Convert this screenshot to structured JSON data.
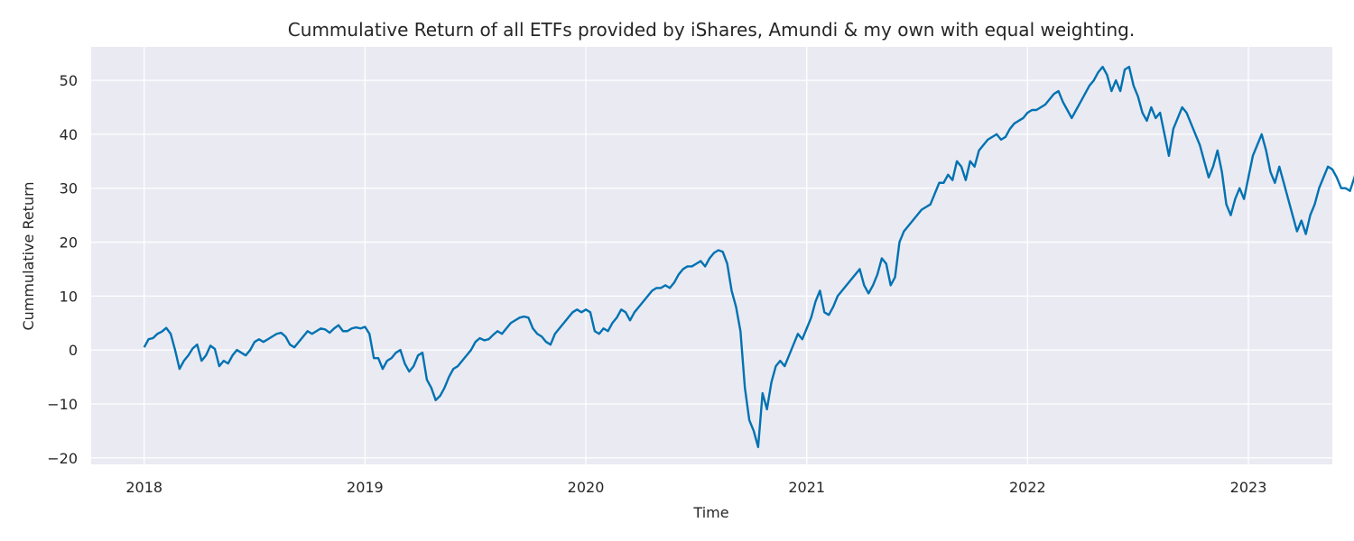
{
  "chart_data": {
    "type": "line",
    "title": "Cummulative Return of all ETFs provided by iShares, Amundi & my own with equal weighting.",
    "xlabel": "Time",
    "ylabel": "Cummulative Return",
    "xlim": [
      2017.76,
      2023.38
    ],
    "ylim": [
      -21.2,
      56.2
    ],
    "grid": true,
    "x_ticks": [
      {
        "value": 2018,
        "label": "2018"
      },
      {
        "value": 2019,
        "label": "2019"
      },
      {
        "value": 2020,
        "label": "2020"
      },
      {
        "value": 2021,
        "label": "2021"
      },
      {
        "value": 2022,
        "label": "2022"
      },
      {
        "value": 2023,
        "label": "2023"
      }
    ],
    "y_ticks": [
      {
        "value": 50,
        "label": "50"
      },
      {
        "value": 40,
        "label": "40"
      },
      {
        "value": 30,
        "label": "30"
      },
      {
        "value": 20,
        "label": "20"
      },
      {
        "value": 10,
        "label": "10"
      },
      {
        "value": 0,
        "label": "0"
      },
      {
        "value": -10,
        "label": "−10"
      },
      {
        "value": -20,
        "label": "−20"
      }
    ],
    "series": [
      {
        "name": "Cummulative Return",
        "color": "#0072b2",
        "points": [
          [
            2018.0,
            0.5
          ],
          [
            2018.02,
            2.0
          ],
          [
            2018.04,
            2.2
          ],
          [
            2018.06,
            3.0
          ],
          [
            2018.08,
            3.4
          ],
          [
            2018.1,
            4.1
          ],
          [
            2018.12,
            3.0
          ],
          [
            2018.14,
            0.0
          ],
          [
            2018.16,
            -3.5
          ],
          [
            2018.18,
            -2.0
          ],
          [
            2018.2,
            -1.0
          ],
          [
            2018.22,
            0.3
          ],
          [
            2018.24,
            1.0
          ],
          [
            2018.26,
            -2.0
          ],
          [
            2018.28,
            -1.0
          ],
          [
            2018.3,
            0.8
          ],
          [
            2018.32,
            0.2
          ],
          [
            2018.34,
            -3.0
          ],
          [
            2018.36,
            -2.0
          ],
          [
            2018.38,
            -2.5
          ],
          [
            2018.4,
            -1.0
          ],
          [
            2018.42,
            0.0
          ],
          [
            2018.44,
            -0.5
          ],
          [
            2018.46,
            -1.0
          ],
          [
            2018.48,
            0.0
          ],
          [
            2018.5,
            1.5
          ],
          [
            2018.52,
            2.0
          ],
          [
            2018.54,
            1.5
          ],
          [
            2018.56,
            2.0
          ],
          [
            2018.58,
            2.5
          ],
          [
            2018.6,
            3.0
          ],
          [
            2018.62,
            3.2
          ],
          [
            2018.64,
            2.5
          ],
          [
            2018.66,
            1.0
          ],
          [
            2018.68,
            0.5
          ],
          [
            2018.7,
            1.5
          ],
          [
            2018.72,
            2.5
          ],
          [
            2018.74,
            3.5
          ],
          [
            2018.76,
            3.0
          ],
          [
            2018.78,
            3.5
          ],
          [
            2018.8,
            4.0
          ],
          [
            2018.82,
            3.8
          ],
          [
            2018.84,
            3.2
          ],
          [
            2018.86,
            4.0
          ],
          [
            2018.88,
            4.6
          ],
          [
            2018.9,
            3.5
          ],
          [
            2018.92,
            3.5
          ],
          [
            2018.94,
            4.0
          ],
          [
            2018.96,
            4.2
          ],
          [
            2018.98,
            4.0
          ],
          [
            2019.0,
            4.3
          ],
          [
            2019.02,
            3.0
          ],
          [
            2019.04,
            -1.5
          ],
          [
            2019.06,
            -1.5
          ],
          [
            2019.08,
            -3.5
          ],
          [
            2019.1,
            -2.0
          ],
          [
            2019.12,
            -1.5
          ],
          [
            2019.14,
            -0.5
          ],
          [
            2019.16,
            0.0
          ],
          [
            2019.18,
            -2.5
          ],
          [
            2019.2,
            -4.0
          ],
          [
            2019.22,
            -3.0
          ],
          [
            2019.24,
            -1.0
          ],
          [
            2019.26,
            -0.5
          ],
          [
            2019.28,
            -5.5
          ],
          [
            2019.3,
            -7.0
          ],
          [
            2019.32,
            -9.3
          ],
          [
            2019.34,
            -8.5
          ],
          [
            2019.36,
            -7.0
          ],
          [
            2019.38,
            -5.0
          ],
          [
            2019.4,
            -3.5
          ],
          [
            2019.42,
            -3.0
          ],
          [
            2019.44,
            -2.0
          ],
          [
            2019.46,
            -1.0
          ],
          [
            2019.48,
            0.0
          ],
          [
            2019.5,
            1.5
          ],
          [
            2019.52,
            2.2
          ],
          [
            2019.54,
            1.8
          ],
          [
            2019.56,
            2.0
          ],
          [
            2019.58,
            2.8
          ],
          [
            2019.6,
            3.5
          ],
          [
            2019.62,
            3.0
          ],
          [
            2019.64,
            4.0
          ],
          [
            2019.66,
            5.0
          ],
          [
            2019.68,
            5.5
          ],
          [
            2019.7,
            6.0
          ],
          [
            2019.72,
            6.2
          ],
          [
            2019.74,
            6.0
          ],
          [
            2019.76,
            4.0
          ],
          [
            2019.78,
            3.0
          ],
          [
            2019.8,
            2.5
          ],
          [
            2019.82,
            1.5
          ],
          [
            2019.84,
            1.0
          ],
          [
            2019.86,
            3.0
          ],
          [
            2019.88,
            4.0
          ],
          [
            2019.9,
            5.0
          ],
          [
            2019.92,
            6.0
          ],
          [
            2019.94,
            7.0
          ],
          [
            2019.96,
            7.5
          ],
          [
            2019.98,
            7.0
          ],
          [
            2020.0,
            7.5
          ],
          [
            2020.02,
            7.0
          ],
          [
            2020.04,
            3.5
          ],
          [
            2020.06,
            3.0
          ],
          [
            2020.08,
            4.0
          ],
          [
            2020.1,
            3.5
          ],
          [
            2020.12,
            5.0
          ],
          [
            2020.14,
            6.0
          ],
          [
            2020.16,
            7.5
          ],
          [
            2020.18,
            7.0
          ],
          [
            2020.2,
            5.5
          ],
          [
            2020.22,
            7.0
          ],
          [
            2020.24,
            8.0
          ],
          [
            2020.26,
            9.0
          ],
          [
            2020.28,
            10.0
          ],
          [
            2020.3,
            11.0
          ],
          [
            2020.32,
            11.5
          ],
          [
            2020.34,
            11.5
          ],
          [
            2020.36,
            12.0
          ],
          [
            2020.38,
            11.5
          ],
          [
            2020.4,
            12.5
          ],
          [
            2020.42,
            14.0
          ],
          [
            2020.44,
            15.0
          ],
          [
            2020.46,
            15.5
          ],
          [
            2020.48,
            15.5
          ],
          [
            2020.5,
            16.0
          ],
          [
            2020.52,
            16.5
          ],
          [
            2020.54,
            15.5
          ],
          [
            2020.56,
            17.0
          ],
          [
            2020.58,
            18.0
          ],
          [
            2020.6,
            18.5
          ],
          [
            2020.62,
            18.2
          ],
          [
            2020.64,
            16.0
          ],
          [
            2020.66,
            11.0
          ],
          [
            2020.68,
            8.0
          ],
          [
            2020.7,
            3.5
          ],
          [
            2020.72,
            -7.0
          ],
          [
            2020.74,
            -13.0
          ],
          [
            2020.76,
            -15.0
          ],
          [
            2020.78,
            -18.0
          ],
          [
            2020.8,
            -8.0
          ],
          [
            2020.82,
            -11.0
          ],
          [
            2020.84,
            -6.0
          ],
          [
            2020.86,
            -3.0
          ],
          [
            2020.88,
            -2.0
          ],
          [
            2020.9,
            -3.0
          ],
          [
            2020.92,
            -1.0
          ],
          [
            2020.94,
            1.0
          ],
          [
            2020.96,
            3.0
          ],
          [
            2020.98,
            2.0
          ],
          [
            2021.0,
            4.0
          ],
          [
            2021.02,
            6.0
          ],
          [
            2021.04,
            9.0
          ],
          [
            2021.06,
            11.0
          ],
          [
            2021.08,
            7.0
          ],
          [
            2021.1,
            6.5
          ],
          [
            2021.12,
            8.0
          ],
          [
            2021.14,
            10.0
          ],
          [
            2021.16,
            11.0
          ],
          [
            2021.18,
            12.0
          ],
          [
            2021.2,
            13.0
          ],
          [
            2021.22,
            14.0
          ],
          [
            2021.24,
            15.0
          ],
          [
            2021.26,
            12.0
          ],
          [
            2021.28,
            10.5
          ],
          [
            2021.3,
            12.0
          ],
          [
            2021.32,
            14.0
          ],
          [
            2021.34,
            17.0
          ],
          [
            2021.36,
            16.0
          ],
          [
            2021.38,
            12.0
          ],
          [
            2021.4,
            13.5
          ],
          [
            2021.42,
            20.0
          ],
          [
            2021.44,
            22.0
          ],
          [
            2021.46,
            23.0
          ],
          [
            2021.48,
            24.0
          ],
          [
            2021.5,
            25.0
          ],
          [
            2021.52,
            26.0
          ],
          [
            2021.54,
            26.5
          ],
          [
            2021.56,
            27.0
          ],
          [
            2021.58,
            29.0
          ],
          [
            2021.6,
            31.0
          ],
          [
            2021.62,
            31.0
          ],
          [
            2021.64,
            32.5
          ],
          [
            2021.66,
            31.5
          ],
          [
            2021.68,
            35.0
          ],
          [
            2021.7,
            34.0
          ],
          [
            2021.72,
            31.5
          ],
          [
            2021.74,
            35.0
          ],
          [
            2021.76,
            34.0
          ],
          [
            2021.78,
            37.0
          ],
          [
            2021.8,
            38.0
          ],
          [
            2021.82,
            39.0
          ],
          [
            2021.84,
            39.5
          ],
          [
            2021.86,
            40.0
          ],
          [
            2021.88,
            39.0
          ],
          [
            2021.9,
            39.5
          ],
          [
            2021.92,
            41.0
          ],
          [
            2021.94,
            42.0
          ],
          [
            2021.96,
            42.5
          ],
          [
            2021.98,
            43.0
          ],
          [
            2022.0,
            44.0
          ],
          [
            2022.02,
            44.5
          ],
          [
            2022.04,
            44.5
          ],
          [
            2022.06,
            45.0
          ],
          [
            2022.08,
            45.5
          ],
          [
            2022.1,
            46.5
          ],
          [
            2022.12,
            47.5
          ],
          [
            2022.14,
            48.0
          ],
          [
            2022.16,
            46.0
          ],
          [
            2022.18,
            44.5
          ],
          [
            2022.2,
            43.0
          ],
          [
            2022.22,
            44.5
          ],
          [
            2022.24,
            46.0
          ],
          [
            2022.26,
            47.5
          ],
          [
            2022.28,
            49.0
          ],
          [
            2022.3,
            50.0
          ],
          [
            2022.32,
            51.5
          ],
          [
            2022.34,
            52.5
          ],
          [
            2022.36,
            51.0
          ],
          [
            2022.38,
            48.0
          ],
          [
            2022.4,
            50.0
          ],
          [
            2022.42,
            48.0
          ],
          [
            2022.44,
            52.0
          ],
          [
            2022.46,
            52.5
          ],
          [
            2022.48,
            49.0
          ],
          [
            2022.5,
            47.0
          ],
          [
            2022.52,
            44.0
          ],
          [
            2022.54,
            42.5
          ],
          [
            2022.56,
            45.0
          ],
          [
            2022.58,
            43.0
          ],
          [
            2022.6,
            44.0
          ],
          [
            2022.62,
            40.0
          ],
          [
            2022.64,
            36.0
          ],
          [
            2022.66,
            41.0
          ],
          [
            2022.68,
            43.0
          ],
          [
            2022.7,
            45.0
          ],
          [
            2022.72,
            44.0
          ],
          [
            2022.74,
            42.0
          ],
          [
            2022.76,
            40.0
          ],
          [
            2022.78,
            38.0
          ],
          [
            2022.8,
            35.0
          ],
          [
            2022.82,
            32.0
          ],
          [
            2022.84,
            34.0
          ],
          [
            2022.86,
            37.0
          ],
          [
            2022.88,
            33.0
          ],
          [
            2022.9,
            27.0
          ],
          [
            2022.92,
            25.0
          ],
          [
            2022.94,
            28.0
          ],
          [
            2022.96,
            30.0
          ],
          [
            2022.98,
            28.0
          ],
          [
            2023.0,
            32.0
          ],
          [
            2023.02,
            36.0
          ],
          [
            2023.04,
            38.0
          ],
          [
            2023.06,
            40.0
          ],
          [
            2023.08,
            37.0
          ],
          [
            2023.1,
            33.0
          ],
          [
            2023.12,
            31.0
          ],
          [
            2023.14,
            34.0
          ],
          [
            2023.16,
            31.0
          ],
          [
            2023.18,
            28.0
          ],
          [
            2023.2,
            25.0
          ],
          [
            2023.22,
            22.0
          ],
          [
            2023.24,
            24.0
          ],
          [
            2023.26,
            21.5
          ],
          [
            2023.28,
            25.0
          ],
          [
            2023.3,
            27.0
          ],
          [
            2023.32,
            30.0
          ],
          [
            2023.34,
            32.0
          ],
          [
            2023.36,
            34.0
          ],
          [
            2023.38,
            33.5
          ],
          [
            2023.4,
            32.0
          ],
          [
            2023.42,
            30.0
          ],
          [
            2023.44,
            30.0
          ],
          [
            2023.46,
            29.5
          ],
          [
            2023.48,
            32.0
          ],
          [
            2023.5,
            35.0
          ],
          [
            2023.52,
            37.5
          ],
          [
            2023.54,
            38.5
          ],
          [
            2023.56,
            40.5
          ],
          [
            2023.58,
            39.0
          ],
          [
            2023.6,
            38.5
          ]
        ]
      }
    ]
  }
}
